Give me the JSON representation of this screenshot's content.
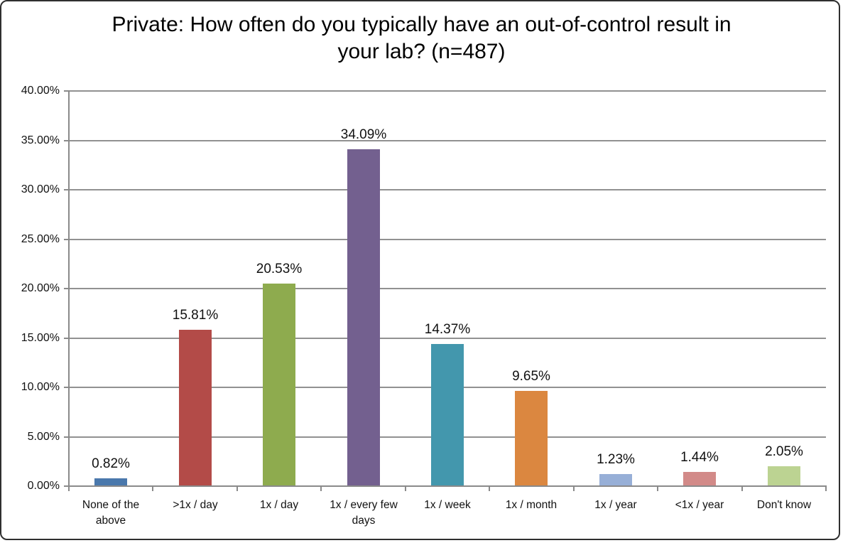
{
  "frame": {
    "border_color": "#2f2f2f",
    "background_color": "#ffffff"
  },
  "chart_data": {
    "type": "bar",
    "title": "Private: How often do you typically have an out-of-control result in your lab? (n=487)",
    "categories": [
      "None of the above",
      ">1x / day",
      "1x / day",
      "1x / every few days",
      "1x / week",
      "1x / month",
      "1x / year",
      "<1x / year",
      "Don't know"
    ],
    "values": [
      0.82,
      15.81,
      20.53,
      34.09,
      14.37,
      9.65,
      1.23,
      1.44,
      2.05
    ],
    "data_labels": [
      "0.82%",
      "15.81%",
      "20.53%",
      "34.09%",
      "14.37%",
      "9.65%",
      "1.23%",
      "1.44%",
      "2.05%"
    ],
    "bar_colors": [
      "#4A78AC",
      "#B34B48",
      "#8EAB4E",
      "#73608F",
      "#4397AD",
      "#DB8740",
      "#97AFD7",
      "#D28A88",
      "#BCD392"
    ],
    "xlabel": "",
    "ylabel": "",
    "ylim": [
      0,
      40
    ],
    "yticks": [
      0,
      5,
      10,
      15,
      20,
      25,
      30,
      35,
      40
    ],
    "ytick_labels": [
      "0.00%",
      "5.00%",
      "10.00%",
      "15.00%",
      "20.00%",
      "25.00%",
      "30.00%",
      "35.00%",
      "40.00%"
    ],
    "grid": true,
    "gridline_color": "#919191",
    "axis_color": "#8a8a8a",
    "text_color": "#111111",
    "legend_position": "none"
  }
}
